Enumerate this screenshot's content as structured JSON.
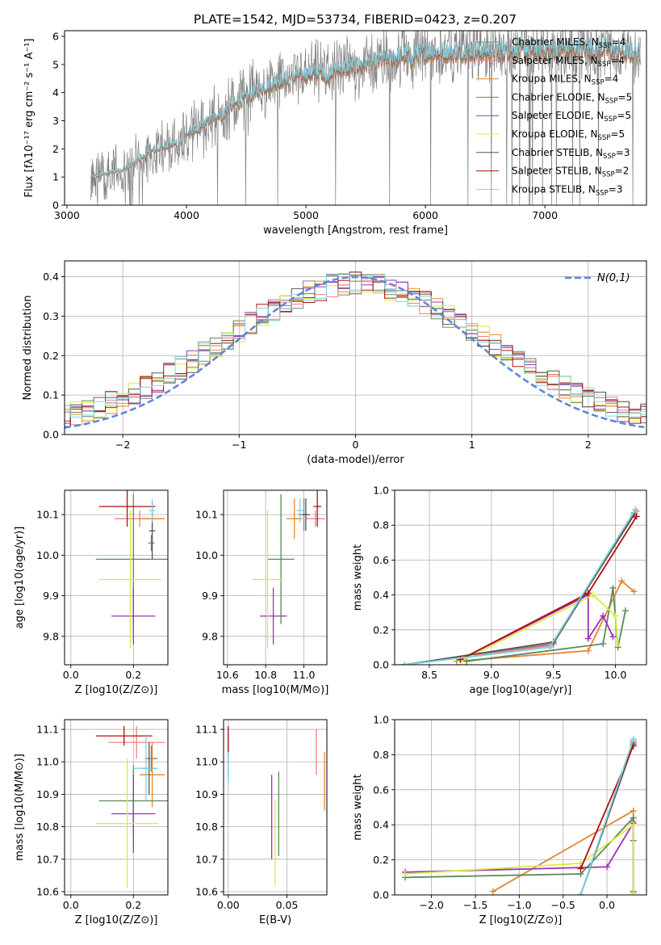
{
  "figure_title": "PLATE=1542, MJD=53734, FIBERID=0423, z=0.207",
  "palette": {
    "Chabrier MILES": "#808080",
    "Salpeter MILES": "#f08080",
    "Kroupa MILES": "#e6862e",
    "Chabrier ELODIE": "#5a8a5a",
    "Salpeter ELODIE": "#9b30b8",
    "Kroupa ELODIE": "#d8ec3e",
    "Chabrier STELIB": "#555555",
    "Salpeter STELIB": "#b01010",
    "Kroupa STELIB": "#7fd4e0"
  },
  "legend_entries": [
    {
      "label": "Chabrier MILES, N",
      "sub": "SSP",
      "post": "=4",
      "key": "Chabrier MILES"
    },
    {
      "label": "Salpeter MILES, N",
      "sub": "SSP",
      "post": "=4",
      "key": "Salpeter MILES"
    },
    {
      "label": "Kroupa MILES, N",
      "sub": "SSP",
      "post": "=4",
      "key": "Kroupa MILES"
    },
    {
      "label": "Chabrier ELODIE, N",
      "sub": "SSP",
      "post": "=5",
      "key": "Chabrier ELODIE"
    },
    {
      "label": "Salpeter ELODIE, N",
      "sub": "SSP",
      "post": "=5",
      "key": "Salpeter ELODIE"
    },
    {
      "label": "Kroupa ELODIE, N",
      "sub": "SSP",
      "post": "=5",
      "key": "Kroupa ELODIE"
    },
    {
      "label": "Chabrier STELIB, N",
      "sub": "SSP",
      "post": "=3",
      "key": "Chabrier STELIB"
    },
    {
      "label": "Salpeter STELIB, N",
      "sub": "SSP",
      "post": "=2",
      "key": "Salpeter STELIB"
    },
    {
      "label": "Kroupa STELIB, N",
      "sub": "SSP",
      "post": "=3",
      "key": "Kroupa STELIB"
    }
  ],
  "chart_data": [
    {
      "id": "spectrum",
      "type": "line",
      "xlabel": "wavelength [Angstrom, rest frame]",
      "ylabel": "Flux [fλ10⁻¹⁷ erg cm⁻² s⁻¹ A⁻¹]",
      "xlim": [
        2980,
        7850
      ],
      "ylim": [
        0,
        6.2
      ],
      "xticks": [
        "3000",
        "4000",
        "5000",
        "6000",
        "7000"
      ],
      "yticks": [
        "0",
        "1",
        "2",
        "3",
        "4",
        "5",
        "6"
      ],
      "grid": false,
      "legend_position": "right",
      "data_x_range": [
        3200,
        7800
      ],
      "continuum": [
        [
          3200,
          1.0
        ],
        [
          3500,
          1.3
        ],
        [
          3700,
          1.9
        ],
        [
          3900,
          2.2
        ],
        [
          4000,
          2.5
        ],
        [
          4300,
          3.3
        ],
        [
          4500,
          3.8
        ],
        [
          4700,
          4.3
        ],
        [
          4850,
          4.5
        ],
        [
          5000,
          4.65
        ],
        [
          5200,
          4.75
        ],
        [
          5500,
          5.0
        ],
        [
          5800,
          5.3
        ],
        [
          6000,
          5.4
        ],
        [
          6500,
          5.45
        ],
        [
          7000,
          5.5
        ],
        [
          7500,
          5.55
        ],
        [
          7800,
          5.35
        ]
      ]
    },
    {
      "id": "residuals",
      "type": "histogram",
      "xlabel": "(data-model)/error",
      "ylabel": "Normed distribution",
      "xlim": [
        -2.5,
        2.5
      ],
      "ylim": [
        0,
        0.44
      ],
      "xticks": [
        "−2",
        "−1",
        "0",
        "1",
        "2"
      ],
      "yticks": [
        "0.0",
        "0.1",
        "0.2",
        "0.3",
        "0.4"
      ],
      "grid": true,
      "legend": "N(0,1)",
      "bin_width": 0.1
    },
    {
      "id": "age_vs_Z",
      "type": "errorbar",
      "xlabel": "Z [log10(Z/Z⊙)]",
      "ylabel": "age [log10(age/yr)]",
      "xlim": [
        -0.02,
        0.31
      ],
      "ylim": [
        9.73,
        10.16
      ],
      "xticks": [
        "0.0",
        "0.2"
      ],
      "yticks": [
        "9.8",
        "9.9",
        "10.0",
        "10.1"
      ],
      "grid": true,
      "points": [
        {
          "s": "Chabrier MILES",
          "x": 0.257,
          "xe": 0.01,
          "y": 10.03,
          "ye": 0.02
        },
        {
          "s": "Salpeter MILES",
          "x": 0.22,
          "xe": 0.08,
          "y": 10.09,
          "ye": 0.02
        },
        {
          "s": "Kroupa MILES",
          "x": 0.26,
          "xe": 0.04,
          "y": 10.09,
          "ye": 0.02
        },
        {
          "s": "Chabrier ELODIE",
          "x": 0.2,
          "xe": 0.12,
          "y": 9.99,
          "ye": 0.16
        },
        {
          "s": "Salpeter ELODIE",
          "x": 0.2,
          "xe": 0.07,
          "y": 9.85,
          "ye": 0.07
        },
        {
          "s": "Kroupa ELODIE",
          "x": 0.19,
          "xe": 0.1,
          "y": 9.94,
          "ye": 0.17
        },
        {
          "s": "Chabrier STELIB",
          "x": 0.26,
          "xe": 0.01,
          "y": 10.06,
          "ye": 0.07
        },
        {
          "s": "Salpeter STELIB",
          "x": 0.18,
          "xe": 0.09,
          "y": 10.12,
          "ye": 0.05
        },
        {
          "s": "Kroupa STELIB",
          "x": 0.26,
          "xe": 0.01,
          "y": 10.11,
          "ye": 0.03
        }
      ]
    },
    {
      "id": "age_vs_mass",
      "type": "errorbar",
      "xlabel": "mass [log10(M/M⊙)]",
      "ylabel": "",
      "xlim": [
        10.58,
        11.12
      ],
      "ylim": [
        9.73,
        10.16
      ],
      "xticks": [
        "10.6",
        "10.8",
        "11.0"
      ],
      "yticks": [
        "9.8",
        "9.9",
        "10.0",
        "10.1"
      ],
      "grid": true,
      "points": [
        {
          "s": "Chabrier MILES",
          "x": 11.0,
          "xe": 0.03,
          "y": 10.1,
          "ye": 0.04
        },
        {
          "s": "Salpeter MILES",
          "x": 11.06,
          "xe": 0.05,
          "y": 10.09,
          "ye": 0.02
        },
        {
          "s": "Kroupa MILES",
          "x": 10.95,
          "xe": 0.04,
          "y": 10.09,
          "ye": 0.05
        },
        {
          "s": "Chabrier ELODIE",
          "x": 10.88,
          "xe": 0.07,
          "y": 9.99,
          "ye": 0.16
        },
        {
          "s": "Salpeter ELODIE",
          "x": 10.84,
          "xe": 0.07,
          "y": 9.85,
          "ye": 0.07
        },
        {
          "s": "Kroupa ELODIE",
          "x": 10.81,
          "xe": 0.08,
          "y": 9.94,
          "ye": 0.17
        },
        {
          "s": "Chabrier STELIB",
          "x": 11.01,
          "xe": 0.02,
          "y": 10.1,
          "ye": 0.04
        },
        {
          "s": "Salpeter STELIB",
          "x": 11.07,
          "xe": 0.02,
          "y": 10.12,
          "ye": 0.05
        },
        {
          "s": "Kroupa STELIB",
          "x": 10.98,
          "xe": 0.02,
          "y": 10.11,
          "ye": 0.03
        }
      ]
    },
    {
      "id": "massweight_vs_age",
      "type": "line",
      "xlabel": "age [log10(age/yr)]",
      "ylabel": "mass weight",
      "xlim": [
        8.22,
        10.25
      ],
      "ylim": [
        0,
        1.0
      ],
      "xticks": [
        "8.5",
        "9.0",
        "9.5",
        "10.0"
      ],
      "yticks": [
        "0.0",
        "0.2",
        "0.4",
        "0.6",
        "0.8",
        "1.0"
      ],
      "grid": true,
      "series": [
        {
          "s": "Chabrier MILES",
          "x": [
            8.3,
            9.5,
            10.15
          ],
          "y": [
            0.0,
            0.12,
            0.87
          ]
        },
        {
          "s": "Salpeter MILES",
          "x": [
            8.3,
            9.48,
            10.17
          ],
          "y": [
            0.0,
            0.11,
            0.88
          ]
        },
        {
          "s": "Kroupa MILES",
          "x": [
            8.72,
            9.78,
            10.05,
            10.15
          ],
          "y": [
            0.02,
            0.08,
            0.48,
            0.42
          ]
        },
        {
          "s": "Chabrier ELODIE",
          "x": [
            8.8,
            9.9,
            9.98,
            10.02,
            10.08
          ],
          "y": [
            0.02,
            0.12,
            0.44,
            0.1,
            0.31
          ]
        },
        {
          "s": "Salpeter ELODIE",
          "x": [
            8.75,
            9.78,
            9.78,
            9.9,
            9.98
          ],
          "y": [
            0.03,
            0.4,
            0.15,
            0.28,
            0.16
          ]
        },
        {
          "s": "Kroupa ELODIE",
          "x": [
            8.75,
            9.82,
            10.0,
            10.02
          ],
          "y": [
            0.02,
            0.4,
            0.28,
            0.12
          ]
        },
        {
          "s": "Chabrier STELIB",
          "x": [
            8.3,
            9.5,
            10.15
          ],
          "y": [
            0.0,
            0.13,
            0.86
          ]
        },
        {
          "s": "Salpeter STELIB",
          "x": [
            8.75,
            9.78,
            10.17
          ],
          "y": [
            0.03,
            0.41,
            0.85
          ]
        },
        {
          "s": "Kroupa STELIB",
          "x": [
            8.3,
            9.47,
            10.16
          ],
          "y": [
            0.0,
            0.1,
            0.89
          ]
        }
      ]
    },
    {
      "id": "mass_vs_Z",
      "type": "errorbar",
      "xlabel": "Z [log10(Z/Z⊙)]",
      "ylabel": "mass [log10(M/M⊙)]",
      "xlim": [
        -0.02,
        0.31
      ],
      "ylim": [
        10.59,
        11.13
      ],
      "xticks": [
        "0.0",
        "0.2"
      ],
      "yticks": [
        "10.6",
        "10.7",
        "10.8",
        "10.9",
        "11.0",
        "11.1"
      ],
      "grid": true,
      "points": [
        {
          "s": "Chabrier MILES",
          "x": 0.257,
          "xe": 0.02,
          "y": 11.01,
          "ye": 0.04
        },
        {
          "s": "Salpeter MILES",
          "x": 0.21,
          "xe": 0.09,
          "y": 11.06,
          "ye": 0.05
        },
        {
          "s": "Kroupa MILES",
          "x": 0.26,
          "xe": 0.04,
          "y": 10.96,
          "ye": 0.1
        },
        {
          "s": "Chabrier ELODIE",
          "x": 0.2,
          "xe": 0.11,
          "y": 10.88,
          "ye": 0.11
        },
        {
          "s": "Salpeter ELODIE",
          "x": 0.2,
          "xe": 0.07,
          "y": 10.84,
          "ye": 0.12
        },
        {
          "s": "Kroupa ELODIE",
          "x": 0.18,
          "xe": 0.1,
          "y": 10.81,
          "ye": 0.2
        },
        {
          "s": "Chabrier STELIB",
          "x": 0.25,
          "xe": 0.02,
          "y": 10.98,
          "ye": 0.08
        },
        {
          "s": "Salpeter STELIB",
          "x": 0.17,
          "xe": 0.09,
          "y": 11.08,
          "ye": 0.03
        },
        {
          "s": "Kroupa STELIB",
          "x": 0.24,
          "xe": 0.04,
          "y": 10.98,
          "ye": 0.1
        }
      ]
    },
    {
      "id": "mass_vs_ebv",
      "type": "errorbar",
      "xlabel": "E(B-V)",
      "ylabel": "",
      "xlim": [
        -0.004,
        0.084
      ],
      "ylim": [
        10.59,
        11.13
      ],
      "xticks": [
        "0.00",
        "0.05"
      ],
      "yticks": [
        "10.6",
        "10.7",
        "10.8",
        "10.9",
        "11.0",
        "11.1"
      ],
      "grid": true,
      "points": [
        {
          "s": "Chabrier MILES",
          "x": 0.0,
          "xe": 0,
          "y": 11.05,
          "ye": 0.04
        },
        {
          "s": "Salpeter MILES",
          "x": 0.075,
          "xe": 0,
          "y": 11.03,
          "ye": 0.07
        },
        {
          "s": "Kroupa MILES",
          "x": 0.082,
          "xe": 0,
          "y": 10.94,
          "ye": 0.09
        },
        {
          "s": "Chabrier ELODIE",
          "x": 0.043,
          "xe": 0,
          "y": 10.84,
          "ye": 0.13
        },
        {
          "s": "Salpeter ELODIE",
          "x": 0.037,
          "xe": 0,
          "y": 10.83,
          "ye": 0.13
        },
        {
          "s": "Kroupa ELODIE",
          "x": 0.04,
          "xe": 0,
          "y": 10.75,
          "ye": 0.13
        },
        {
          "s": "Chabrier STELIB",
          "x": 0.0,
          "xe": 0,
          "y": 11.0,
          "ye": 0.05
        },
        {
          "s": "Salpeter STELIB",
          "x": 0.0,
          "xe": 0,
          "y": 11.06,
          "ye": 0.05
        },
        {
          "s": "Kroupa STELIB",
          "x": 0.0,
          "xe": 0,
          "y": 10.98,
          "ye": 0.05
        }
      ]
    },
    {
      "id": "massweight_vs_Z",
      "type": "line",
      "xlabel": "Z [log10(Z/Z⊙)]",
      "ylabel": "mass weight",
      "xlim": [
        -2.42,
        0.45
      ],
      "ylim": [
        0,
        1.0
      ],
      "xticks": [
        "−2.0",
        "−1.5",
        "−1.0",
        "−0.5",
        "0.0"
      ],
      "yticks": [
        "0.0",
        "0.2",
        "0.4",
        "0.6",
        "0.8",
        "1.0"
      ],
      "grid": true,
      "series": [
        {
          "s": "Chabrier MILES",
          "x": [
            -0.3,
            0.3
          ],
          "y": [
            0.0,
            0.87
          ]
        },
        {
          "s": "Salpeter MILES",
          "x": [
            -0.3,
            0.3
          ],
          "y": [
            0.0,
            0.88
          ]
        },
        {
          "s": "Kroupa MILES",
          "x": [
            -1.3,
            0.3,
            0.3
          ],
          "y": [
            0.02,
            0.48,
            0.42
          ]
        },
        {
          "s": "Chabrier ELODIE",
          "x": [
            -2.3,
            -0.3,
            0.3,
            0.3,
            0.3
          ],
          "y": [
            0.1,
            0.12,
            0.44,
            0.31,
            0.02
          ]
        },
        {
          "s": "Salpeter ELODIE",
          "x": [
            -2.3,
            0.0,
            0.3,
            0.3
          ],
          "y": [
            0.13,
            0.16,
            0.41,
            0.01
          ]
        },
        {
          "s": "Kroupa ELODIE",
          "x": [
            -2.3,
            -0.3,
            0.3,
            0.3
          ],
          "y": [
            0.12,
            0.18,
            0.4,
            0.01
          ]
        },
        {
          "s": "Chabrier STELIB",
          "x": [
            -0.3,
            0.3
          ],
          "y": [
            0.0,
            0.86
          ]
        },
        {
          "s": "Salpeter STELIB",
          "x": [
            -0.3,
            0.3
          ],
          "y": [
            0.15,
            0.85
          ]
        },
        {
          "s": "Kroupa STELIB",
          "x": [
            -0.3,
            0.3
          ],
          "y": [
            0.0,
            0.89
          ]
        }
      ]
    }
  ]
}
